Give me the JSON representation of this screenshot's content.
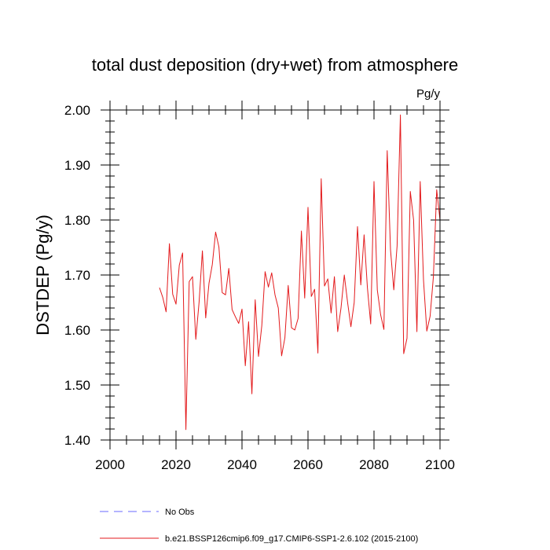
{
  "chart_data": {
    "type": "line",
    "title": "total dust deposition (dry+wet) from atmosphere",
    "units": "Pg/y",
    "ylabel": "DSTDEP  (Pg/y)",
    "xlabel": "",
    "xlim": [
      2000,
      2100
    ],
    "ylim": [
      1.4,
      2.0
    ],
    "xticks": [
      2000,
      2020,
      2040,
      2060,
      2080,
      2100
    ],
    "xtick_labels": [
      "2000",
      "2020",
      "2040",
      "2060",
      "2080",
      "2100"
    ],
    "yticks": [
      1.4,
      1.5,
      1.6,
      1.7,
      1.8,
      1.9,
      2.0
    ],
    "ytick_labels": [
      "1.40",
      "1.50",
      "1.60",
      "1.70",
      "1.80",
      "1.90",
      "2.00"
    ],
    "grid": false,
    "series": [
      {
        "name": "b.e21.BSSP126cmip6.f09_g17.CMIP6-SSP1-2.6.102 (2015-2100)",
        "color": "#e31a1c",
        "style": "solid",
        "x": [
          2015,
          2016,
          2017,
          2018,
          2019,
          2020,
          2021,
          2022,
          2023,
          2024,
          2025,
          2026,
          2027,
          2028,
          2029,
          2030,
          2031,
          2032,
          2033,
          2034,
          2035,
          2036,
          2037,
          2038,
          2039,
          2040,
          2041,
          2042,
          2043,
          2044,
          2045,
          2046,
          2047,
          2048,
          2049,
          2050,
          2051,
          2052,
          2053,
          2054,
          2055,
          2056,
          2057,
          2058,
          2059,
          2060,
          2061,
          2062,
          2063,
          2064,
          2065,
          2066,
          2067,
          2068,
          2069,
          2070,
          2071,
          2072,
          2073,
          2074,
          2075,
          2076,
          2077,
          2078,
          2079,
          2080,
          2081,
          2082,
          2083,
          2084,
          2085,
          2086,
          2087,
          2088,
          2089,
          2090,
          2091,
          2092,
          2093,
          2094,
          2095,
          2096,
          2097,
          2098,
          2099,
          2100
        ],
        "values": [
          1.677,
          1.659,
          1.633,
          1.757,
          1.665,
          1.647,
          1.718,
          1.74,
          1.419,
          1.688,
          1.697,
          1.583,
          1.651,
          1.744,
          1.622,
          1.685,
          1.719,
          1.778,
          1.751,
          1.668,
          1.664,
          1.712,
          1.637,
          1.624,
          1.612,
          1.638,
          1.535,
          1.615,
          1.484,
          1.655,
          1.552,
          1.608,
          1.706,
          1.678,
          1.704,
          1.664,
          1.64,
          1.553,
          1.586,
          1.681,
          1.604,
          1.6,
          1.621,
          1.78,
          1.658,
          1.823,
          1.661,
          1.674,
          1.558,
          1.875,
          1.68,
          1.693,
          1.631,
          1.697,
          1.597,
          1.64,
          1.7,
          1.65,
          1.606,
          1.65,
          1.788,
          1.682,
          1.773,
          1.677,
          1.611,
          1.87,
          1.673,
          1.628,
          1.601,
          1.926,
          1.746,
          1.673,
          1.753,
          1.991,
          1.557,
          1.585,
          1.852,
          1.8,
          1.597,
          1.87,
          1.691,
          1.598,
          1.625,
          1.697,
          1.855,
          1.8
        ]
      }
    ],
    "legend": [
      {
        "label": "No Obs",
        "color": "#6a6aff",
        "style": "dashed"
      },
      {
        "label": "b.e21.BSSP126cmip6.f09_g17.CMIP6-SSP1-2.6.102 (2015-2100)",
        "color": "#e31a1c",
        "style": "solid"
      }
    ]
  }
}
